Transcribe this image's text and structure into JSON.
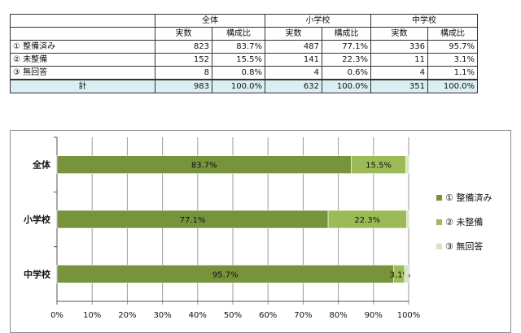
{
  "table": {
    "group_headers": [
      "全体",
      "小学校",
      "中学校"
    ],
    "sub_headers": [
      "実数",
      "構成比",
      "実数",
      "構成比",
      "実数",
      "構成比"
    ],
    "rows": [
      {
        "label": "① 整備済み",
        "cells": [
          "823",
          "83.7%",
          "487",
          "77.1%",
          "336",
          "95.7%"
        ]
      },
      {
        "label": "② 未整備",
        "cells": [
          "152",
          "15.5%",
          "141",
          "22.3%",
          "11",
          "3.1%"
        ]
      },
      {
        "label": "③ 無回答",
        "cells": [
          "8",
          "0.8%",
          "4",
          "0.6%",
          "4",
          "1.1%"
        ]
      }
    ],
    "total": {
      "label": "計",
      "cells": [
        "983",
        "100.0%",
        "632",
        "100.0%",
        "351",
        "100.0%"
      ]
    }
  },
  "chart_data": {
    "type": "bar",
    "orientation": "horizontal",
    "stacked": true,
    "categories": [
      "全体",
      "小学校",
      "中学校"
    ],
    "series": [
      {
        "name": "① 整備済み",
        "values": [
          83.7,
          77.1,
          95.7
        ],
        "color": "#77933c",
        "labels": [
          "83.7%",
          "77.1%",
          "95.7%"
        ]
      },
      {
        "name": "② 未整備",
        "values": [
          15.5,
          22.3,
          3.1
        ],
        "color": "#9bbb59",
        "labels": [
          "15.5%",
          "22.3%",
          "3.1%"
        ]
      },
      {
        "name": "③ 無回答",
        "values": [
          0.8,
          0.6,
          1.1
        ],
        "color": "#d7e4bd",
        "labels": [
          "",
          "",
          ""
        ]
      }
    ],
    "xlim": [
      0,
      100
    ],
    "x_ticks": [
      "0%",
      "10%",
      "20%",
      "30%",
      "40%",
      "50%",
      "60%",
      "70%",
      "80%",
      "90%",
      "100%"
    ],
    "grid": true,
    "legend": "right"
  }
}
